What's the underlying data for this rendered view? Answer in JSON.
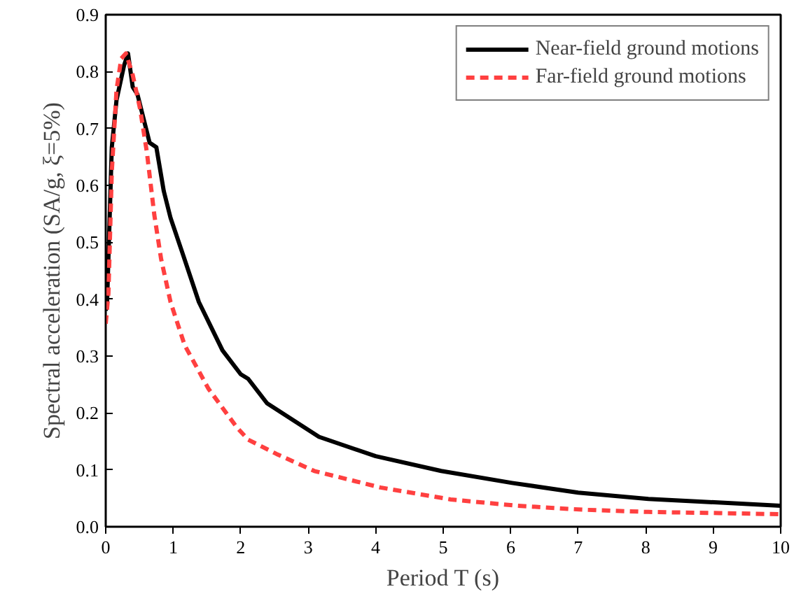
{
  "chart_data": {
    "type": "line",
    "xlabel": "Period T (s)",
    "ylabel": "Spectral acceleration (SA/g, ξ=5%)",
    "xlim": [
      0,
      10
    ],
    "ylim": [
      0,
      0.9
    ],
    "xticks": [
      0,
      1,
      2,
      3,
      4,
      5,
      6,
      7,
      8,
      9,
      10
    ],
    "yticks": [
      {
        "value": 0,
        "label": "0.0"
      },
      0.1,
      0.2,
      0.3,
      0.4,
      0.5,
      0.6,
      0.7,
      0.8,
      0.9
    ],
    "grid": false,
    "legend": "top right",
    "marker": "none",
    "series": [
      {
        "name": "Near-field ground motions",
        "color": "#000000",
        "line_style": "solid",
        "x": [
          0.0,
          0.02,
          0.09,
          0.16,
          0.27,
          0.33,
          0.4,
          0.47,
          0.65,
          0.75,
          0.86,
          0.96,
          1.14,
          1.38,
          1.73,
          2.0,
          2.11,
          2.39,
          3.16,
          4.0,
          4.97,
          6.02,
          7.0,
          8.04,
          9.02,
          10.0
        ],
        "values": [
          0.38,
          0.395,
          0.667,
          0.75,
          0.81,
          0.832,
          0.773,
          0.76,
          0.675,
          0.667,
          0.59,
          0.543,
          0.48,
          0.395,
          0.31,
          0.268,
          0.26,
          0.217,
          0.158,
          0.124,
          0.098,
          0.077,
          0.06,
          0.049,
          0.043,
          0.037
        ]
      },
      {
        "name": "Far-field ground motions",
        "color": "#ff4040",
        "line_style": "dashed",
        "x": [
          0.0,
          0.04,
          0.09,
          0.16,
          0.23,
          0.3,
          0.4,
          0.51,
          0.61,
          0.72,
          0.82,
          0.96,
          1.17,
          1.52,
          1.94,
          2.11,
          2.53,
          3.09,
          4.07,
          5.11,
          6.09,
          7.06,
          8.04,
          9.09,
          10.0
        ],
        "values": [
          0.357,
          0.41,
          0.624,
          0.768,
          0.823,
          0.832,
          0.794,
          0.734,
          0.658,
          0.548,
          0.471,
          0.395,
          0.319,
          0.243,
          0.175,
          0.153,
          0.128,
          0.098,
          0.069,
          0.048,
          0.037,
          0.03,
          0.026,
          0.024,
          0.022
        ]
      }
    ]
  }
}
